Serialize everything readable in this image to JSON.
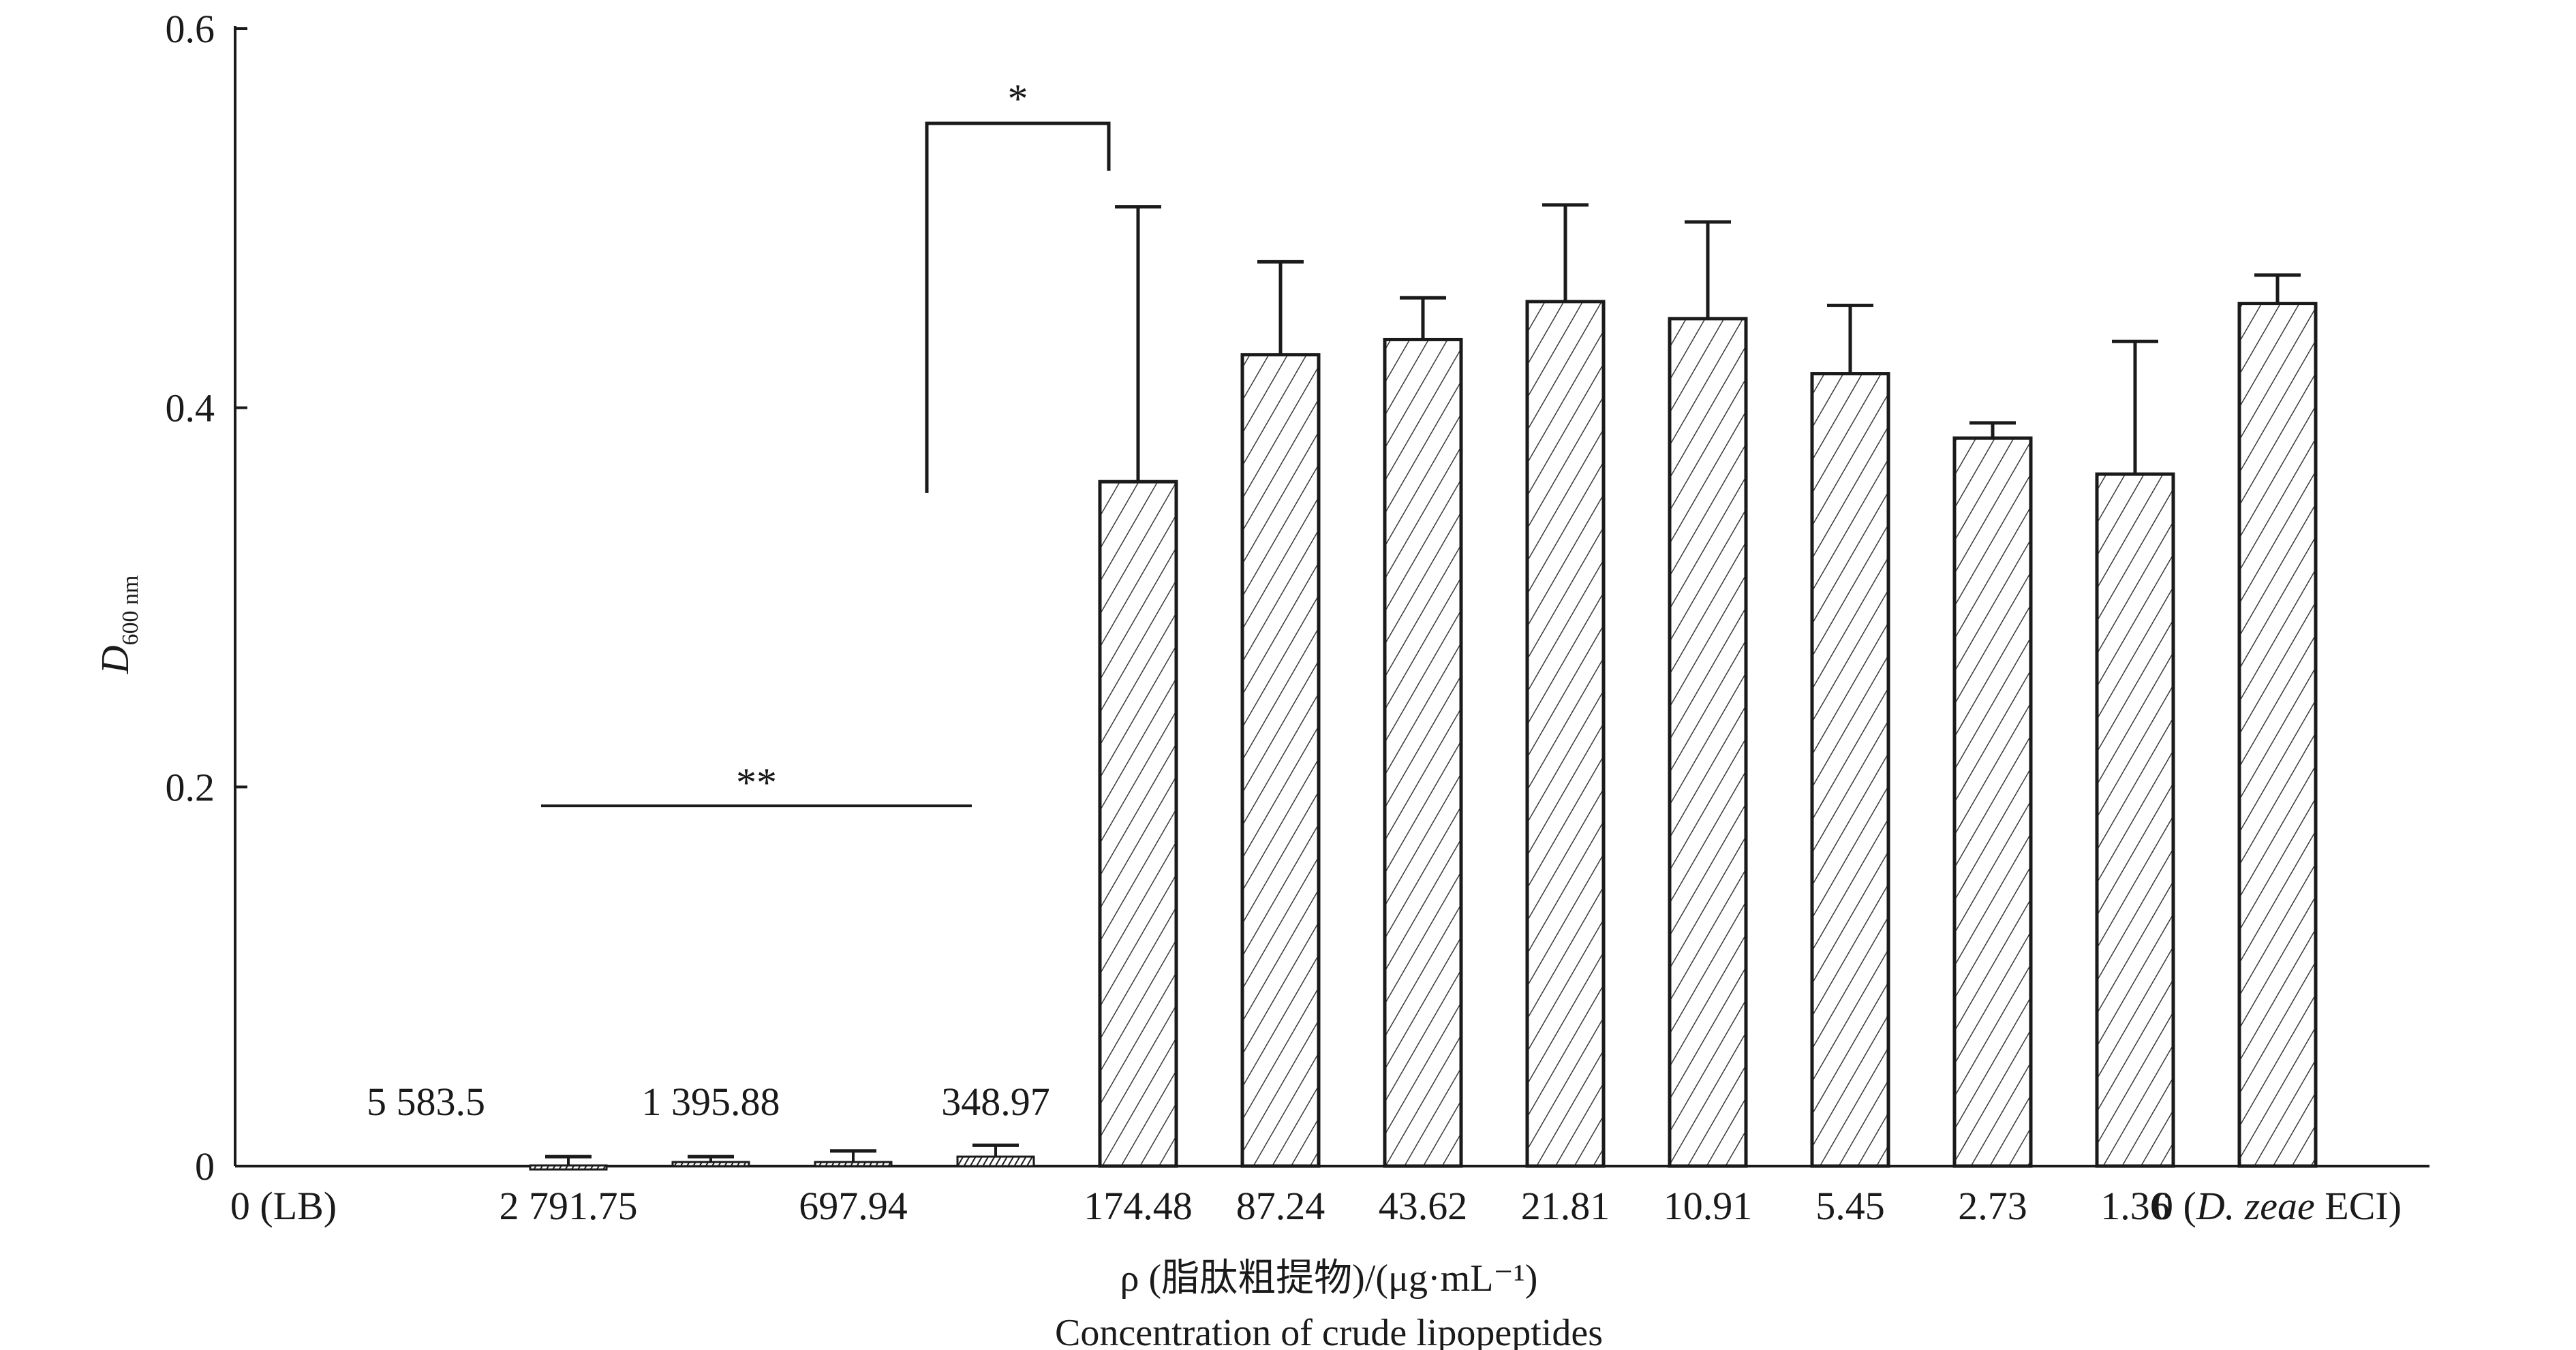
{
  "chart_data": {
    "type": "bar",
    "ylabel_main": "D",
    "ylabel_sub": "600 nm",
    "xlabel_line1": "ρ (脂肽粗提物)/(μg·mL⁻¹)",
    "xlabel_line2": "Concentration of  crude lipopeptides",
    "ylim": [
      0,
      0.6
    ],
    "yticks": [
      0,
      0.2,
      0.4,
      0.6
    ],
    "ytick_labels": [
      "0",
      "0.2",
      "0.4",
      "0.6"
    ],
    "grid": false,
    "categories": [
      "0 (LB)",
      "5 583.5",
      "2 791.75",
      "1 395.88",
      "697.94",
      "348.97",
      "174.48",
      "87.24",
      "43.62",
      "21.81",
      "10.91",
      "5.45",
      "2.73",
      "1.36",
      "0 (D. zeae ECI)"
    ],
    "category_label_rows": [
      "bottom",
      "top",
      "bottom",
      "top",
      "bottom",
      "top",
      "bottom",
      "bottom",
      "bottom",
      "bottom",
      "bottom",
      "bottom",
      "bottom",
      "bottom",
      "bottom"
    ],
    "values": [
      0,
      0,
      -0.001,
      0,
      0.002,
      0.005,
      0.361,
      0.428,
      0.436,
      0.456,
      0.447,
      0.418,
      0.384,
      0.365,
      0.455
    ],
    "errors": [
      0,
      0,
      0.005,
      0.005,
      0.006,
      0.006,
      0.145,
      0.049,
      0.022,
      0.051,
      0.051,
      0.036,
      0.008,
      0.07,
      0.015
    ],
    "bar_style": "diagonal hatch",
    "bar_color": "#1a1a1a",
    "annotations": [
      {
        "text": "**",
        "type": "line",
        "from_category": 2,
        "to_category": 5,
        "y": 0.19
      },
      {
        "text": "*",
        "type": "bracket",
        "from_category": 5,
        "to_category": 6,
        "y": 0.55,
        "left_drop_to": 0.355,
        "right_drop_to": 0.525
      }
    ]
  }
}
